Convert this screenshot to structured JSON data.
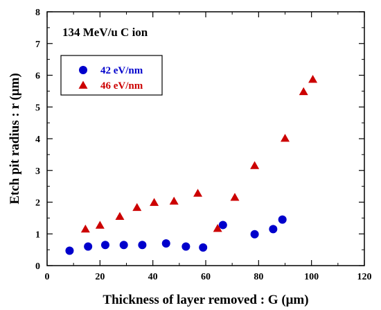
{
  "chart_data": {
    "type": "scatter",
    "annotation": "134 MeV/u C ion",
    "xlabel": "Thickness of layer removed : G (μm)",
    "ylabel": "Etch pit radius : r (μm)",
    "xlim": [
      0,
      120
    ],
    "ylim": [
      0,
      8
    ],
    "xticks": [
      "0",
      "20",
      "40",
      "60",
      "80",
      "100",
      "120"
    ],
    "yticks": [
      "0",
      "1",
      "2",
      "3",
      "4",
      "5",
      "6",
      "7",
      "8"
    ],
    "grid": false,
    "legend_position": "top-left",
    "series": [
      {
        "name": "42 eV/nm",
        "marker": "circle",
        "color": "#0000cc",
        "points": [
          [
            8.5,
            0.47
          ],
          [
            15.5,
            0.6
          ],
          [
            22,
            0.65
          ],
          [
            29,
            0.65
          ],
          [
            36,
            0.65
          ],
          [
            45,
            0.7
          ],
          [
            52.5,
            0.6
          ],
          [
            59,
            0.57
          ],
          [
            66.5,
            1.28
          ],
          [
            78.5,
            0.99
          ],
          [
            85.5,
            1.15
          ],
          [
            89,
            1.45
          ]
        ]
      },
      {
        "name": "46 eV/nm",
        "marker": "triangle",
        "color": "#cc0000",
        "points": [
          [
            14.5,
            1.15
          ],
          [
            20,
            1.27
          ],
          [
            27.5,
            1.55
          ],
          [
            34,
            1.83
          ],
          [
            40.5,
            1.99
          ],
          [
            48,
            2.03
          ],
          [
            57,
            2.28
          ],
          [
            64.5,
            1.17
          ],
          [
            71,
            2.15
          ],
          [
            78.5,
            3.15
          ],
          [
            90,
            4.01
          ],
          [
            97,
            5.48
          ],
          [
            100.5,
            5.87
          ]
        ]
      }
    ]
  }
}
